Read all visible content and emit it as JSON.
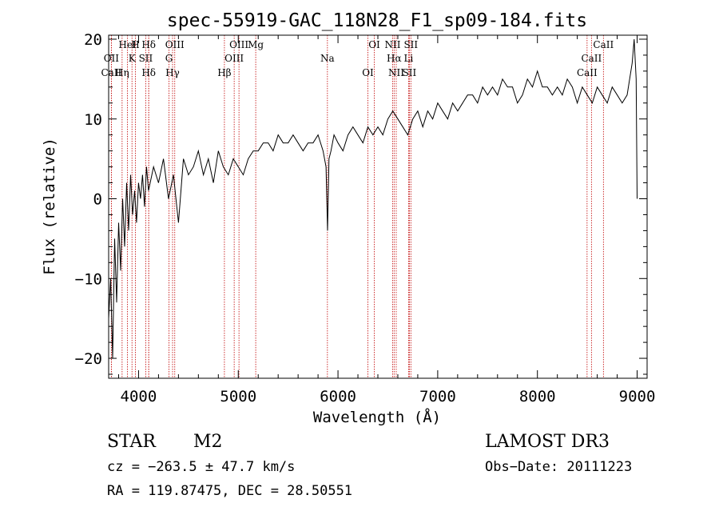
{
  "chart_data": {
    "type": "line",
    "title": "spec-55919-GAC_118N28_F1_sp09-184.fits",
    "xlabel": "Wavelength (Å)",
    "ylabel": "Flux (relative)",
    "xlim": [
      3700,
      9100
    ],
    "ylim": [
      -22.5,
      20.5
    ],
    "xticks": [
      4000,
      5000,
      6000,
      7000,
      8000,
      9000
    ],
    "yticks": [
      -20,
      -10,
      0,
      10,
      20
    ],
    "grid": false,
    "series": [
      {
        "name": "flux",
        "x": [
          3700,
          3720,
          3740,
          3760,
          3780,
          3800,
          3820,
          3840,
          3860,
          3880,
          3900,
          3920,
          3940,
          3960,
          3980,
          4000,
          4020,
          4040,
          4060,
          4080,
          4100,
          4150,
          4200,
          4250,
          4300,
          4350,
          4400,
          4450,
          4500,
          4550,
          4600,
          4650,
          4700,
          4750,
          4800,
          4850,
          4900,
          4950,
          5000,
          5050,
          5100,
          5150,
          5200,
          5250,
          5300,
          5350,
          5400,
          5450,
          5500,
          5550,
          5600,
          5650,
          5700,
          5750,
          5800,
          5850,
          5880,
          5895,
          5910,
          5930,
          5960,
          6000,
          6050,
          6100,
          6150,
          6200,
          6250,
          6300,
          6350,
          6400,
          6450,
          6500,
          6550,
          6600,
          6650,
          6700,
          6750,
          6800,
          6850,
          6900,
          6950,
          7000,
          7050,
          7100,
          7150,
          7200,
          7250,
          7300,
          7350,
          7400,
          7450,
          7500,
          7550,
          7600,
          7650,
          7700,
          7750,
          7800,
          7850,
          7900,
          7950,
          8000,
          8050,
          8100,
          8150,
          8200,
          8250,
          8300,
          8350,
          8400,
          8450,
          8500,
          8550,
          8600,
          8650,
          8700,
          8750,
          8800,
          8850,
          8900,
          8950,
          8970,
          8990,
          9000
        ],
        "values": [
          -15,
          -10,
          -20,
          -5,
          -13,
          -3,
          -9,
          0,
          -6,
          2,
          -4,
          3,
          -2,
          1,
          -3,
          2,
          0,
          3,
          -1,
          4,
          1,
          4,
          2,
          5,
          0,
          3,
          -3,
          5,
          3,
          4,
          6,
          3,
          5,
          2,
          6,
          4,
          3,
          5,
          4,
          3,
          5,
          6,
          6,
          7,
          7,
          6,
          8,
          7,
          7,
          8,
          7,
          6,
          7,
          7,
          8,
          6,
          4,
          -4,
          5,
          6,
          8,
          7,
          6,
          8,
          9,
          8,
          7,
          9,
          8,
          9,
          8,
          10,
          11,
          10,
          9,
          8,
          10,
          11,
          9,
          11,
          10,
          12,
          11,
          10,
          12,
          11,
          12,
          13,
          13,
          12,
          14,
          13,
          14,
          13,
          15,
          14,
          14,
          12,
          13,
          15,
          14,
          16,
          14,
          14,
          13,
          14,
          13,
          15,
          14,
          12,
          14,
          13,
          12,
          14,
          13,
          12,
          14,
          13,
          12,
          13,
          17,
          20,
          15,
          0
        ]
      }
    ],
    "spectral_lines": [
      {
        "label": "Hδ",
        "x": 4102
      },
      {
        "label": "K",
        "x": 3934
      },
      {
        "label": "Hδ",
        "x": 4102
      },
      {
        "label": "OIII",
        "x": 4363
      },
      {
        "label": "OIII",
        "x": 4959
      },
      {
        "label": "CaII",
        "x": 3727
      },
      {
        "label": "HeI",
        "x": 3889
      },
      {
        "label": "SII",
        "x": 4072
      },
      {
        "label": "Hγ",
        "x": 4341
      },
      {
        "label": "OIII",
        "x": 5007
      },
      {
        "label": "OII",
        "x": 3727
      },
      {
        "label": "Hη",
        "x": 3835
      },
      {
        "label": "H",
        "x": 3968
      },
      {
        "label": "G",
        "x": 4305
      },
      {
        "label": "Hβ",
        "x": 4861
      },
      {
        "label": "Mg",
        "x": 5175
      },
      {
        "label": "Na",
        "x": 5894
      },
      {
        "label": "OI",
        "x": 6300
      },
      {
        "label": "OI",
        "x": 6364
      },
      {
        "label": "Hα",
        "x": 6563
      },
      {
        "label": "SII",
        "x": 6716
      },
      {
        "label": "NII",
        "x": 6548
      },
      {
        "label": "Li",
        "x": 6708
      },
      {
        "label": "NII",
        "x": 6584
      },
      {
        "label": "SII",
        "x": 6731
      },
      {
        "label": "CaII",
        "x": 8542
      },
      {
        "label": "CaII",
        "x": 8498
      },
      {
        "label": "CaII",
        "x": 8662
      }
    ]
  },
  "info": {
    "object_class": "STAR",
    "subclass": "M2",
    "survey": "LAMOST DR3",
    "cz": "cz = −263.5 ± 47.7 km/s",
    "obs_date": "Obs−Date: 20111223",
    "coords": "RA = 119.87475, DEC =  28.50551"
  },
  "colors": {
    "line": "#000000",
    "marker_line": "#c00000"
  }
}
